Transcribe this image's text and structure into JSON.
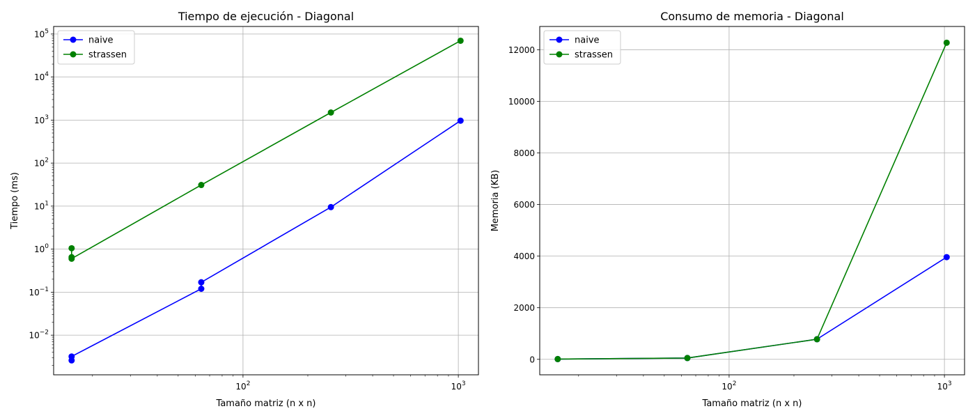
{
  "chart_data": [
    {
      "type": "line",
      "title": "Tiempo de ejecución - Diagonal",
      "xlabel": "Tamaño matriz (n x n)",
      "ylabel": "Tiempo (ms)",
      "xscale": "log",
      "yscale": "log",
      "xlim": [
        13.2,
        1240
      ],
      "ylim": [
        0.0012,
        150000
      ],
      "x_major_ticks": [
        100,
        1000
      ],
      "x_tick_labels": [
        "10^2",
        "10^3"
      ],
      "y_major_ticks": [
        0.01,
        0.1,
        1,
        10,
        100,
        1000,
        10000,
        100000
      ],
      "y_tick_labels": [
        "10^-2",
        "10^-1",
        "10^0",
        "10^1",
        "10^2",
        "10^3",
        "10^4",
        "10^5"
      ],
      "grid": true,
      "legend_position": "top-left",
      "series": [
        {
          "name": "naive",
          "color": "#0000ff",
          "points": [
            [
              16,
              0.0026
            ],
            [
              16,
              0.0032
            ],
            [
              64,
              0.12
            ],
            [
              64,
              0.17
            ],
            [
              256,
              9.5
            ],
            [
              1024,
              970
            ]
          ]
        },
        {
          "name": "strassen",
          "color": "#008000",
          "points": [
            [
              16,
              1.05
            ],
            [
              16,
              0.65
            ],
            [
              16,
              0.6
            ],
            [
              64,
              31
            ],
            [
              256,
              1500
            ],
            [
              1024,
              70000
            ]
          ]
        }
      ]
    },
    {
      "type": "line",
      "title": "Consumo de memoria - Diagonal",
      "xlabel": "Tamaño matriz (n x n)",
      "ylabel": "Memoria (KB)",
      "xscale": "log",
      "yscale": "linear",
      "xlim": [
        13.2,
        1240
      ],
      "ylim": [
        -600,
        12900
      ],
      "x_major_ticks": [
        100,
        1000
      ],
      "x_tick_labels": [
        "10^2",
        "10^3"
      ],
      "y_major_ticks": [
        0,
        2000,
        4000,
        6000,
        8000,
        10000,
        12000
      ],
      "y_tick_labels": [
        "0",
        "2000",
        "4000",
        "6000",
        "8000",
        "10000",
        "12000"
      ],
      "grid": true,
      "legend_position": "top-left",
      "series": [
        {
          "name": "naive",
          "color": "#0000ff",
          "points": [
            [
              16,
              10
            ],
            [
              64,
              50
            ],
            [
              256,
              780
            ],
            [
              1024,
              3960
            ]
          ]
        },
        {
          "name": "strassen",
          "color": "#008000",
          "points": [
            [
              16,
              10
            ],
            [
              64,
              50
            ],
            [
              256,
              780
            ],
            [
              1024,
              12270
            ]
          ]
        }
      ]
    }
  ]
}
